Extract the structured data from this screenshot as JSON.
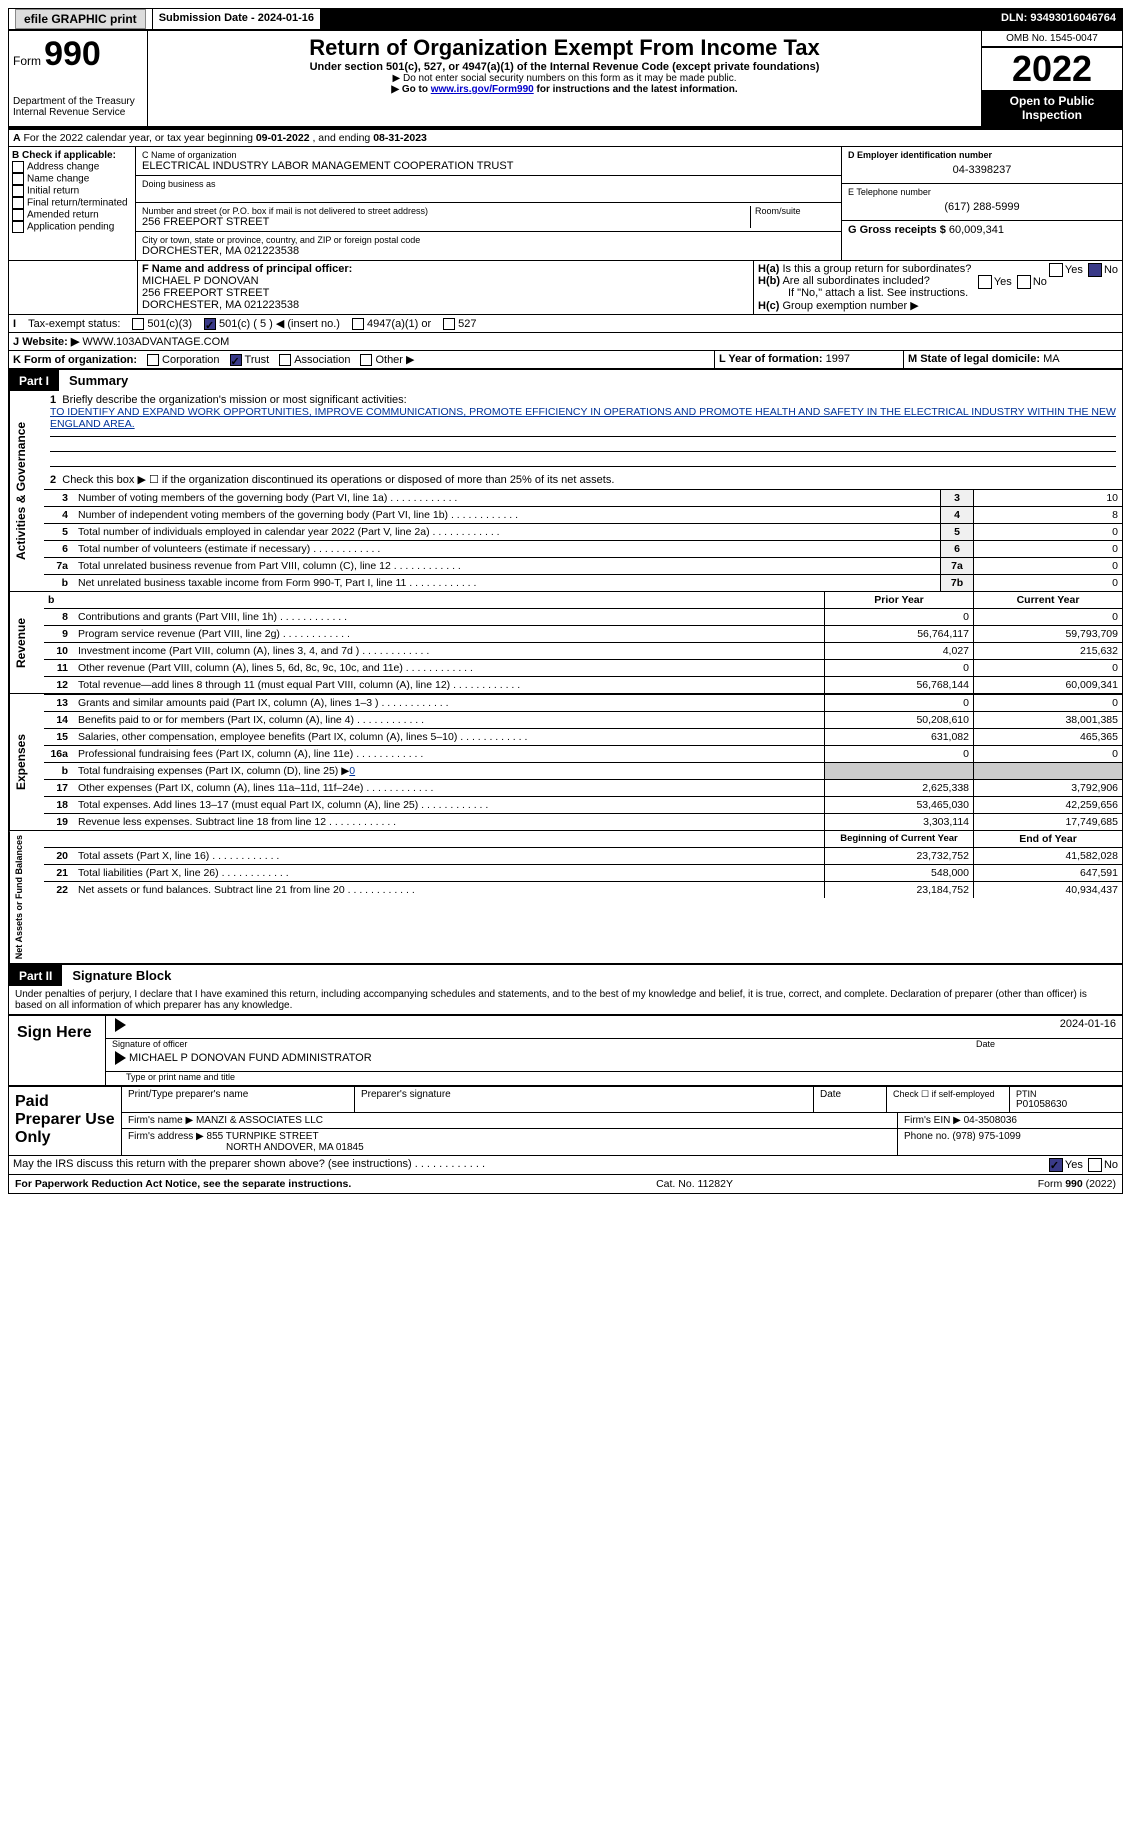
{
  "topbar": {
    "efile": "efile GRAPHIC print",
    "subdate_lbl": "Submission Date - ",
    "subdate": "2024-01-16",
    "dln_lbl": "DLN: ",
    "dln": "93493016046764"
  },
  "header": {
    "form_word": "Form",
    "form_no": "990",
    "dept": "Department of the Treasury\nInternal Revenue Service",
    "title": "Return of Organization Exempt From Income Tax",
    "subtitle": "Under section 501(c), 527, or 4947(a)(1) of the Internal Revenue Code (except private foundations)",
    "line1": "▶ Do not enter social security numbers on this form as it may be made public.",
    "line2a": "▶ Go to ",
    "line2_link": "www.irs.gov/Form990",
    "line2b": " for instructions and the latest information.",
    "omb": "OMB No. 1545-0047",
    "year": "2022",
    "open": "Open to Public Inspection"
  },
  "A": {
    "text_a": "For the 2022 calendar year, or tax year beginning ",
    "begin": "09-01-2022",
    "text_b": " , and ending ",
    "end": "08-31-2023"
  },
  "B": {
    "hdr": "B Check if applicable:",
    "items": [
      "Address change",
      "Name change",
      "Initial return",
      "Final return/terminated",
      "Amended return",
      "Application pending"
    ]
  },
  "C": {
    "lbl": "C Name of organization",
    "name": "ELECTRICAL INDUSTRY LABOR MANAGEMENT COOPERATION TRUST",
    "dba_lbl": "Doing business as",
    "addr_lbl": "Number and street (or P.O. box if mail is not delivered to street address)",
    "room_lbl": "Room/suite",
    "addr": "256 FREEPORT STREET",
    "city_lbl": "City or town, state or province, country, and ZIP or foreign postal code",
    "city": "DORCHESTER, MA  021223538"
  },
  "D": {
    "lbl": "D Employer identification number",
    "val": "04-3398237"
  },
  "E": {
    "lbl": "E Telephone number",
    "val": "(617) 288-5999"
  },
  "G": {
    "lbl": "G Gross receipts $",
    "val": "60,009,341"
  },
  "F": {
    "lbl": "F  Name and address of principal officer:",
    "name": "MICHAEL P DONOVAN",
    "addr1": "256 FREEPORT STREET",
    "addr2": "DORCHESTER, MA  021223538"
  },
  "H": {
    "a": "Is this a group return for subordinates?",
    "b": "Are all subordinates included?",
    "b_note": "If \"No,\" attach a list. See instructions.",
    "c": "Group exemption number ▶"
  },
  "I": {
    "lbl": "Tax-exempt status:",
    "opts": [
      "501(c)(3)",
      "501(c) ( 5 ) ◀ (insert no.)",
      "4947(a)(1) or",
      "527"
    ]
  },
  "J": {
    "lbl": "Website: ▶",
    "val": "WWW.103ADVANTAGE.COM"
  },
  "K": {
    "lbl": "K Form of organization:",
    "opts": [
      "Corporation",
      "Trust",
      "Association",
      "Other ▶"
    ]
  },
  "L": {
    "lbl": "L Year of formation:",
    "val": "1997"
  },
  "M": {
    "lbl": "M State of legal domicile:",
    "val": "MA"
  },
  "part1": {
    "lbl": "Part I",
    "title": "Summary"
  },
  "summary": {
    "q1": "Briefly describe the organization's mission or most significant activities:",
    "mission": "TO IDENTIFY AND EXPAND WORK OPPORTUNITIES, IMPROVE COMMUNICATIONS, PROMOTE EFFICIENCY IN OPERATIONS AND PROMOTE HEALTH AND SAFETY IN THE ELECTRICAL INDUSTRY WITHIN THE NEW ENGLAND AREA.",
    "q2": "Check this box ▶ ☐ if the organization discontinued its operations or disposed of more than 25% of its net assets.",
    "rows_gov": [
      {
        "n": "3",
        "d": "Number of voting members of the governing body (Part VI, line 1a)",
        "box": "3",
        "v": "10"
      },
      {
        "n": "4",
        "d": "Number of independent voting members of the governing body (Part VI, line 1b)",
        "box": "4",
        "v": "8"
      },
      {
        "n": "5",
        "d": "Total number of individuals employed in calendar year 2022 (Part V, line 2a)",
        "box": "5",
        "v": "0"
      },
      {
        "n": "6",
        "d": "Total number of volunteers (estimate if necessary)",
        "box": "6",
        "v": "0"
      },
      {
        "n": "7a",
        "d": "Total unrelated business revenue from Part VIII, column (C), line 12",
        "box": "7a",
        "v": "0"
      },
      {
        "n": "b",
        "d": "Net unrelated business taxable income from Form 990-T, Part I, line 11",
        "box": "7b",
        "v": "0"
      }
    ],
    "col_py": "Prior Year",
    "col_cy": "Current Year",
    "rows_rev": [
      {
        "n": "8",
        "d": "Contributions and grants (Part VIII, line 1h)",
        "py": "0",
        "cy": "0"
      },
      {
        "n": "9",
        "d": "Program service revenue (Part VIII, line 2g)",
        "py": "56,764,117",
        "cy": "59,793,709"
      },
      {
        "n": "10",
        "d": "Investment income (Part VIII, column (A), lines 3, 4, and 7d )",
        "py": "4,027",
        "cy": "215,632"
      },
      {
        "n": "11",
        "d": "Other revenue (Part VIII, column (A), lines 5, 6d, 8c, 9c, 10c, and 11e)",
        "py": "0",
        "cy": "0"
      },
      {
        "n": "12",
        "d": "Total revenue—add lines 8 through 11 (must equal Part VIII, column (A), line 12)",
        "py": "56,768,144",
        "cy": "60,009,341"
      }
    ],
    "rows_exp": [
      {
        "n": "13",
        "d": "Grants and similar amounts paid (Part IX, column (A), lines 1–3 )",
        "py": "0",
        "cy": "0"
      },
      {
        "n": "14",
        "d": "Benefits paid to or for members (Part IX, column (A), line 4)",
        "py": "50,208,610",
        "cy": "38,001,385"
      },
      {
        "n": "15",
        "d": "Salaries, other compensation, employee benefits (Part IX, column (A), lines 5–10)",
        "py": "631,082",
        "cy": "465,365"
      },
      {
        "n": "16a",
        "d": "Professional fundraising fees (Part IX, column (A), line 11e)",
        "py": "0",
        "cy": "0"
      }
    ],
    "row_16b": {
      "n": "b",
      "d": "Total fundraising expenses (Part IX, column (D), line 25) ▶",
      "v": "0"
    },
    "rows_exp2": [
      {
        "n": "17",
        "d": "Other expenses (Part IX, column (A), lines 11a–11d, 11f–24e)",
        "py": "2,625,338",
        "cy": "3,792,906"
      },
      {
        "n": "18",
        "d": "Total expenses. Add lines 13–17 (must equal Part IX, column (A), line 25)",
        "py": "53,465,030",
        "cy": "42,259,656"
      },
      {
        "n": "19",
        "d": "Revenue less expenses. Subtract line 18 from line 12",
        "py": "3,303,114",
        "cy": "17,749,685"
      }
    ],
    "col_boy": "Beginning of Current Year",
    "col_eoy": "End of Year",
    "rows_net": [
      {
        "n": "20",
        "d": "Total assets (Part X, line 16)",
        "py": "23,732,752",
        "cy": "41,582,028"
      },
      {
        "n": "21",
        "d": "Total liabilities (Part X, line 26)",
        "py": "548,000",
        "cy": "647,591"
      },
      {
        "n": "22",
        "d": "Net assets or fund balances. Subtract line 21 from line 20",
        "py": "23,184,752",
        "cy": "40,934,437"
      }
    ],
    "side_gov": "Activities & Governance",
    "side_rev": "Revenue",
    "side_exp": "Expenses",
    "side_net": "Net Assets or Fund Balances"
  },
  "part2": {
    "lbl": "Part II",
    "title": "Signature Block"
  },
  "sig": {
    "decl": "Under penalties of perjury, I declare that I have examined this return, including accompanying schedules and statements, and to the best of my knowledge and belief, it is true, correct, and complete. Declaration of preparer (other than officer) is based on all information of which preparer has any knowledge.",
    "sign_here": "Sign Here",
    "sig_officer": "Signature of officer",
    "date": "Date",
    "date_val": "2024-01-16",
    "name": "MICHAEL P DONOVAN FUND ADMINISTRATOR",
    "name_lbl": "Type or print name and title"
  },
  "paid": {
    "hdr": "Paid Preparer Use Only",
    "c1": "Print/Type preparer's name",
    "c2": "Preparer's signature",
    "c3": "Date",
    "c4": "Check ☐ if self-employed",
    "c5_lbl": "PTIN",
    "c5": "P01058630",
    "firm_lbl": "Firm's name    ▶",
    "firm": "MANZI & ASSOCIATES LLC",
    "ein_lbl": "Firm's EIN ▶",
    "ein": "04-3508036",
    "addr_lbl": "Firm's address ▶",
    "addr1": "855 TURNPIKE STREET",
    "addr2": "NORTH ANDOVER, MA  01845",
    "phone_lbl": "Phone no.",
    "phone": "(978) 975-1099"
  },
  "discuss": "May the IRS discuss this return with the preparer shown above? (see instructions)",
  "footer": {
    "left": "For Paperwork Reduction Act Notice, see the separate instructions.",
    "mid": "Cat. No. 11282Y",
    "right": "Form 990 (2022)"
  },
  "colors": {
    "link": "#0000cc",
    "gray": "#cccccc",
    "bg": "#ffffff"
  }
}
